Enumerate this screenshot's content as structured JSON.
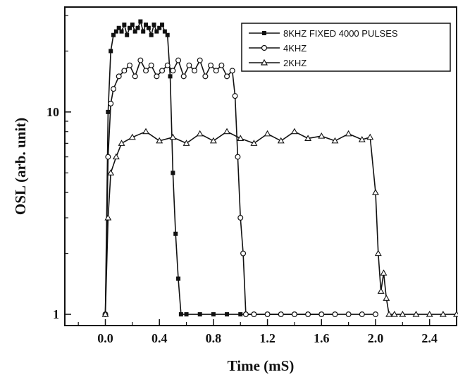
{
  "chart_data": {
    "type": "line",
    "title": "",
    "xlabel": "Time (mS)",
    "ylabel": "OSL (arb. unit)",
    "xlim": [
      -0.3,
      2.6
    ],
    "ylim": [
      0.88,
      33
    ],
    "y_scale": "log",
    "grid": false,
    "legend_position": "top-right",
    "x_ticks": [
      0.0,
      0.4,
      0.8,
      1.2,
      1.6,
      2.0,
      2.4
    ],
    "x_tick_labels": [
      "0.0",
      "0.4",
      "0.8",
      "1.2",
      "1.6",
      "2.0",
      "2.4"
    ],
    "y_ticks": [
      1,
      10
    ],
    "y_tick_labels": [
      "1",
      "10"
    ],
    "series": [
      {
        "name": "8KHZ FIXED 4000 PULSES",
        "marker": "filled-square",
        "color": "#111111",
        "x": [
          0.0,
          0.02,
          0.04,
          0.06,
          0.08,
          0.1,
          0.12,
          0.14,
          0.16,
          0.18,
          0.2,
          0.22,
          0.24,
          0.26,
          0.28,
          0.3,
          0.32,
          0.34,
          0.36,
          0.38,
          0.4,
          0.42,
          0.44,
          0.46,
          0.48,
          0.5,
          0.52,
          0.54,
          0.56,
          0.6,
          0.7,
          0.8,
          0.9,
          1.0,
          1.1,
          1.2,
          1.3,
          1.4,
          1.5,
          1.6,
          1.7
        ],
        "values": [
          1,
          10,
          20,
          24,
          25,
          26,
          25,
          27,
          24,
          26,
          27,
          25,
          26,
          28,
          25,
          27,
          26,
          24,
          27,
          25,
          26,
          27,
          25,
          24,
          15,
          5,
          2.5,
          1.5,
          1,
          1,
          1,
          1,
          1,
          1,
          1,
          1,
          1,
          1,
          1,
          1,
          1
        ]
      },
      {
        "name": "4KHZ",
        "marker": "open-circle",
        "color": "#111111",
        "x": [
          0.0,
          0.02,
          0.04,
          0.06,
          0.1,
          0.14,
          0.18,
          0.22,
          0.26,
          0.3,
          0.34,
          0.38,
          0.42,
          0.46,
          0.5,
          0.54,
          0.58,
          0.62,
          0.66,
          0.7,
          0.74,
          0.78,
          0.82,
          0.86,
          0.9,
          0.94,
          0.96,
          0.98,
          1.0,
          1.02,
          1.04,
          1.1,
          1.2,
          1.3,
          1.4,
          1.5,
          1.6,
          1.7,
          1.8,
          1.9,
          2.0
        ],
        "values": [
          1,
          6,
          11,
          13,
          15,
          16,
          17,
          15,
          18,
          16,
          17,
          15,
          16,
          17,
          16,
          18,
          15,
          17,
          16,
          18,
          15,
          17,
          16,
          17,
          15,
          16,
          12,
          6,
          3,
          2,
          1,
          1,
          1,
          1,
          1,
          1,
          1,
          1,
          1,
          1,
          1
        ]
      },
      {
        "name": "2KHZ",
        "marker": "open-triangle",
        "color": "#111111",
        "x": [
          0.0,
          0.02,
          0.04,
          0.08,
          0.12,
          0.2,
          0.3,
          0.4,
          0.5,
          0.6,
          0.7,
          0.8,
          0.9,
          1.0,
          1.1,
          1.2,
          1.3,
          1.4,
          1.5,
          1.6,
          1.7,
          1.8,
          1.9,
          1.96,
          2.0,
          2.02,
          2.04,
          2.06,
          2.08,
          2.1,
          2.14,
          2.2,
          2.3,
          2.4,
          2.5,
          2.6
        ],
        "values": [
          1,
          3,
          5,
          6,
          7,
          7.5,
          8,
          7.2,
          7.5,
          7,
          7.8,
          7.2,
          8,
          7.4,
          7,
          7.8,
          7.2,
          8,
          7.4,
          7.6,
          7.2,
          7.8,
          7.3,
          7.5,
          4,
          2,
          1.3,
          1.6,
          1.2,
          1,
          1,
          1,
          1,
          1,
          1,
          1
        ]
      }
    ]
  }
}
